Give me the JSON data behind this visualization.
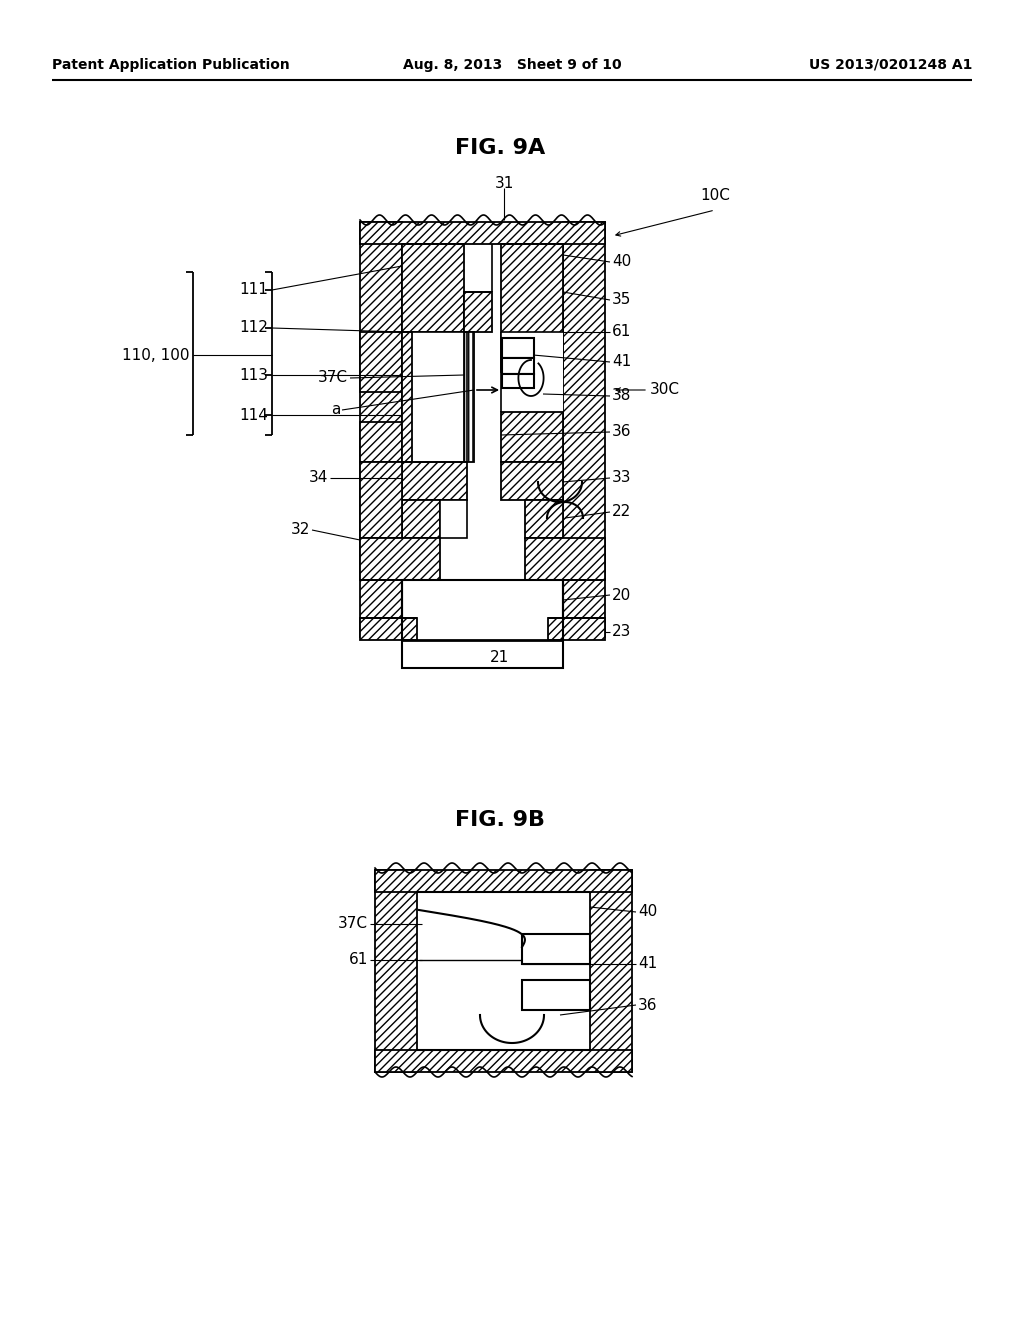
{
  "bg_color": "#ffffff",
  "line_color": "#000000",
  "header_left": "Patent Application Publication",
  "header_mid": "Aug. 8, 2013   Sheet 9 of 10",
  "header_right": "US 2013/0201248 A1",
  "fig9a_title": "FIG. 9A",
  "fig9b_title": "FIG. 9B",
  "lw_main": 1.3,
  "lw_leader": 0.8,
  "label_fontsize": 11,
  "title_fontsize": 16,
  "header_fontsize": 10
}
